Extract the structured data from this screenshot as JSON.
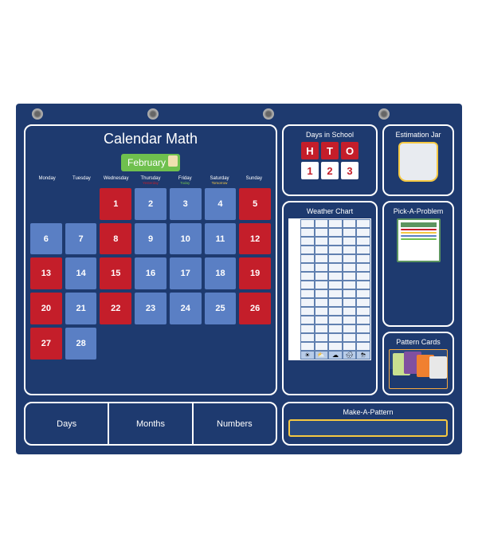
{
  "title": "Calendar Math",
  "month": "February",
  "weekdays": [
    "Monday",
    "Tuesday",
    "Wednesday",
    "Thursday",
    "Friday",
    "Saturday",
    "Sunday"
  ],
  "weekday_labels": [
    "",
    "",
    "",
    "Yesterday",
    "Today",
    "Tomorrow",
    ""
  ],
  "calendar": {
    "cells": [
      {
        "n": "",
        "c": "empty"
      },
      {
        "n": "",
        "c": "empty"
      },
      {
        "n": "1",
        "c": "red"
      },
      {
        "n": "2",
        "c": "blue"
      },
      {
        "n": "3",
        "c": "blue"
      },
      {
        "n": "4",
        "c": "blue"
      },
      {
        "n": "5",
        "c": "red"
      },
      {
        "n": "6",
        "c": "blue"
      },
      {
        "n": "7",
        "c": "blue"
      },
      {
        "n": "8",
        "c": "red"
      },
      {
        "n": "9",
        "c": "blue"
      },
      {
        "n": "10",
        "c": "blue"
      },
      {
        "n": "11",
        "c": "blue"
      },
      {
        "n": "12",
        "c": "red"
      },
      {
        "n": "13",
        "c": "red"
      },
      {
        "n": "14",
        "c": "blue"
      },
      {
        "n": "15",
        "c": "red"
      },
      {
        "n": "16",
        "c": "blue"
      },
      {
        "n": "17",
        "c": "blue"
      },
      {
        "n": "18",
        "c": "blue"
      },
      {
        "n": "19",
        "c": "red"
      },
      {
        "n": "20",
        "c": "red"
      },
      {
        "n": "21",
        "c": "blue"
      },
      {
        "n": "22",
        "c": "red"
      },
      {
        "n": "23",
        "c": "blue"
      },
      {
        "n": "24",
        "c": "blue"
      },
      {
        "n": "25",
        "c": "blue"
      },
      {
        "n": "26",
        "c": "red"
      },
      {
        "n": "27",
        "c": "red"
      },
      {
        "n": "28",
        "c": "blue"
      },
      {
        "n": "",
        "c": "empty"
      },
      {
        "n": "",
        "c": "empty"
      },
      {
        "n": "",
        "c": "empty"
      },
      {
        "n": "",
        "c": "empty"
      },
      {
        "n": "",
        "c": "empty"
      }
    ]
  },
  "days_in_school": {
    "title": "Days in School",
    "headers": [
      "H",
      "T",
      "O"
    ],
    "values": [
      "1",
      "2",
      "3"
    ]
  },
  "estimation": {
    "title": "Estimation Jar"
  },
  "weather": {
    "title": "Weather Chart",
    "rows": [
      "15",
      "14",
      "13",
      "12",
      "11",
      "10",
      "9",
      "8",
      "7",
      "6",
      "5",
      "4",
      "3",
      "2",
      "1"
    ],
    "icons": [
      "☀",
      "⛅",
      "☁",
      "🌧",
      "⛈"
    ]
  },
  "pick": {
    "title": "Pick-A-Problem"
  },
  "pattern": {
    "title": "Pattern Cards"
  },
  "make": {
    "title": "Make-A-Pattern"
  },
  "tabs": [
    "Days",
    "Months",
    "Numbers"
  ],
  "colors": {
    "board": "#1e3a6f",
    "red": "#c41e2a",
    "blue": "#5a7fc4",
    "green": "#6fc04e",
    "yellow": "#f5c842",
    "white": "#ffffff"
  }
}
